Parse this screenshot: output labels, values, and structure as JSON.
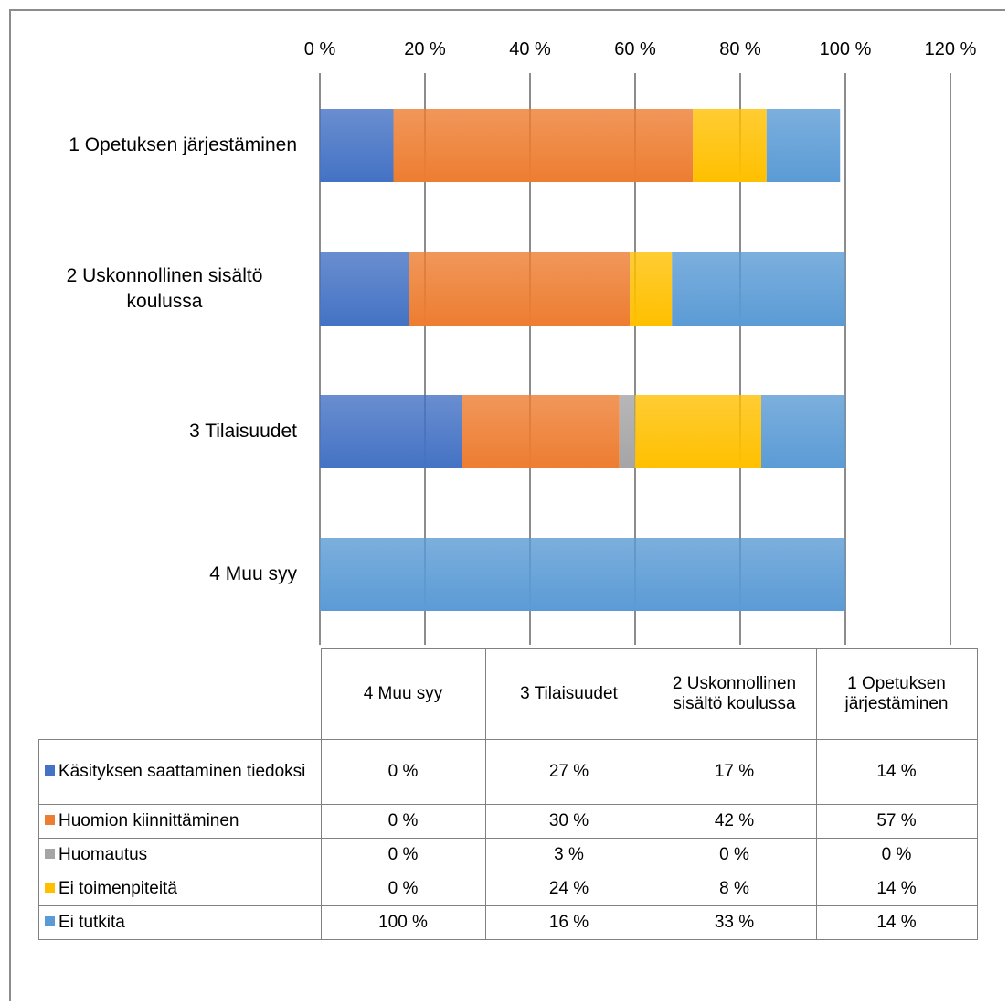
{
  "chart_data": {
    "type": "bar",
    "orientation": "horizontal",
    "stacked": true,
    "x_tick_labels": [
      "0 %",
      "20 %",
      "40 %",
      "60 %",
      "80 %",
      "100 %",
      "120 %"
    ],
    "xlim": [
      0,
      120
    ],
    "grid": true,
    "categories": [
      "1 Opetuksen järjestäminen",
      "2 Uskonnollinen sisältö koulussa",
      "3 Tilaisuudet",
      "4 Muu syy"
    ],
    "series": [
      {
        "name": "Käsityksen saattaminen tiedoksi",
        "color": "#4472c4",
        "values": [
          14,
          17,
          27,
          0
        ]
      },
      {
        "name": "Huomion kiinnittäminen",
        "color": "#ed7d31",
        "values": [
          57,
          42,
          30,
          0
        ]
      },
      {
        "name": "Huomautus",
        "color": "#a5a5a5",
        "values": [
          0,
          0,
          3,
          0
        ]
      },
      {
        "name": "Ei toimenpiteitä",
        "color": "#ffc000",
        "values": [
          14,
          8,
          24,
          0
        ]
      },
      {
        "name": "Ei tutkita",
        "color": "#5b9bd5",
        "values": [
          14,
          33,
          16,
          100
        ]
      }
    ],
    "legend": "data-table"
  },
  "table": {
    "columns": [
      "4 Muu syy",
      "3 Tilaisuudet",
      "2 Uskonnollinen sisältö koulussa",
      "1 Opetuksen järjestäminen"
    ],
    "rows": [
      {
        "label": "Käsityksen saattaminen tiedoksi",
        "color": "#4472c4",
        "cells": [
          "0 %",
          "27 %",
          "17 %",
          "14 %"
        ]
      },
      {
        "label": "Huomion kiinnittäminen",
        "color": "#ed7d31",
        "cells": [
          "0 %",
          "30 %",
          "42 %",
          "57 %"
        ]
      },
      {
        "label": "Huomautus",
        "color": "#a5a5a5",
        "cells": [
          "0 %",
          "3 %",
          "0 %",
          "0 %"
        ]
      },
      {
        "label": "Ei toimenpiteitä",
        "color": "#ffc000",
        "cells": [
          "0 %",
          "24 %",
          "8 %",
          "14 %"
        ]
      },
      {
        "label": "Ei tutkita",
        "color": "#5b9bd5",
        "cells": [
          "100 %",
          "16 %",
          "33 %",
          "14 %"
        ]
      }
    ]
  }
}
